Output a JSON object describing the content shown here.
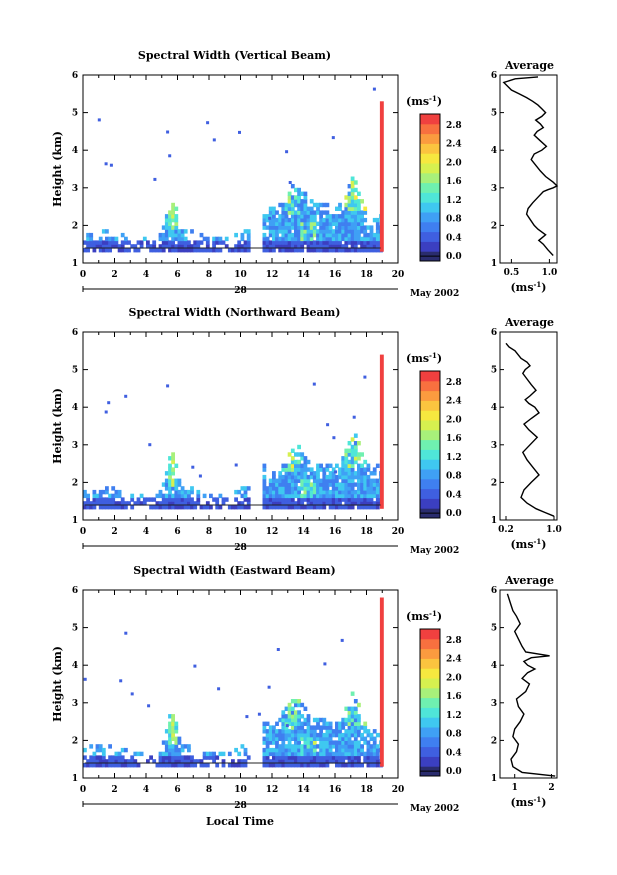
{
  "colorscale": {
    "colors": [
      "#2a2c6e",
      "#3b3fc1",
      "#3f5fe0",
      "#3f7ff0",
      "#3fa0f5",
      "#3fc8f0",
      "#4fe6d8",
      "#6ff0b0",
      "#a8f07a",
      "#d6f04f",
      "#f6e83f",
      "#fbc43f",
      "#fb9b3f",
      "#f8703f",
      "#f0403f"
    ],
    "ticks": [
      "0.0",
      "0.4",
      "0.8",
      "1.2",
      "1.6",
      "2.0",
      "2.4",
      "2.8"
    ],
    "unit": "(ms",
    "unit_sup": "-1",
    "unit_close": ")"
  },
  "time_axis": {
    "ticks": [
      "0",
      "2",
      "4",
      "6",
      "8",
      "10",
      "12",
      "14",
      "16",
      "18",
      "20"
    ],
    "day": "28",
    "month_year": "May 2002",
    "xlabel": "Local Time"
  },
  "height_axis": {
    "ticks": [
      "1",
      "2",
      "3",
      "4",
      "5",
      "6"
    ],
    "ylabel": "Height (km)"
  },
  "panels": [
    {
      "id": "vertical",
      "title": "Spectral Width (Vertical Beam)",
      "avg_title": "Average",
      "avg_ticks": [
        "0.5",
        "1.0"
      ],
      "avg_range": [
        0.35,
        1.1
      ],
      "avg_xlabel": "(ms",
      "avg_xlabel_sup": "-1",
      "avg_xlabel_close": ")"
    },
    {
      "id": "northward",
      "title": "Spectral Width (Northward Beam)",
      "avg_title": "Average",
      "avg_ticks": [
        "0.2",
        "1.0"
      ],
      "avg_range": [
        0.1,
        1.05
      ],
      "avg_xlabel": "(ms",
      "avg_xlabel_sup": "-1",
      "avg_xlabel_close": ")"
    },
    {
      "id": "eastward",
      "title": "Spectral Width (Eastward Beam)",
      "avg_title": "Average",
      "avg_ticks": [
        "1",
        "2"
      ],
      "avg_range": [
        0.6,
        2.15
      ],
      "avg_xlabel": "(ms",
      "avg_xlabel_sup": "-1",
      "avg_xlabel_close": ")"
    }
  ],
  "chart_data": [
    {
      "type": "heatmap",
      "title": "Spectral Width (Vertical Beam)",
      "xlabel": "",
      "ylabel": "Height (km)",
      "xlim": [
        0,
        20
      ],
      "ylim": [
        1,
        6
      ],
      "colorbar_range": [
        0.0,
        3.0
      ],
      "colorbar_label": "(ms-1)"
    },
    {
      "type": "line",
      "title": "Average",
      "xlabel": "(ms-1)",
      "ylabel": "",
      "xlim": [
        0.35,
        1.1
      ],
      "ylim": [
        1,
        6
      ],
      "x": [
        1.05,
        0.98,
        0.92,
        0.86,
        0.95,
        0.85,
        0.8,
        0.75,
        0.7,
        0.72,
        0.78,
        0.85,
        0.92,
        0.98,
        1.05,
        1.1,
        1.05,
        0.95,
        0.88,
        0.82,
        0.76,
        0.8,
        0.9,
        0.96,
        0.88,
        0.8,
        0.84,
        0.92,
        0.88,
        0.82,
        0.9,
        0.95,
        0.9,
        0.85,
        0.78,
        0.7,
        0.6,
        0.5,
        0.45,
        0.4,
        0.55,
        0.85
      ],
      "y": [
        1.2,
        1.35,
        1.5,
        1.6,
        1.75,
        1.9,
        2.0,
        2.15,
        2.3,
        2.45,
        2.6,
        2.75,
        2.9,
        2.95,
        3.0,
        3.05,
        3.15,
        3.3,
        3.45,
        3.6,
        3.75,
        3.9,
        4.0,
        4.1,
        4.25,
        4.4,
        4.5,
        4.6,
        4.7,
        4.8,
        4.9,
        5.0,
        5.1,
        5.2,
        5.3,
        5.4,
        5.5,
        5.6,
        5.7,
        5.8,
        5.9,
        5.95
      ]
    },
    {
      "type": "heatmap",
      "title": "Spectral Width (Northward Beam)",
      "xlabel": "",
      "ylabel": "Height (km)",
      "xlim": [
        0,
        20
      ],
      "ylim": [
        1,
        6
      ],
      "colorbar_range": [
        0.0,
        3.0
      ],
      "colorbar_label": "(ms-1)"
    },
    {
      "type": "line",
      "title": "Average",
      "xlabel": "(ms-1)",
      "ylabel": "",
      "xlim": [
        0.1,
        1.05
      ],
      "ylim": [
        1,
        6
      ],
      "x": [
        1.0,
        0.85,
        0.7,
        0.55,
        0.45,
        0.5,
        0.62,
        0.75,
        0.65,
        0.55,
        0.48,
        0.6,
        0.72,
        0.58,
        0.5,
        0.62,
        0.75,
        0.68,
        0.58,
        0.52,
        0.6,
        0.7,
        0.62,
        0.55,
        0.48,
        0.52,
        0.6,
        0.55,
        0.45,
        0.4,
        0.35,
        0.25,
        0.2
      ],
      "y": [
        1.1,
        1.2,
        1.3,
        1.45,
        1.6,
        1.8,
        2.0,
        2.2,
        2.4,
        2.6,
        2.8,
        3.0,
        3.2,
        3.4,
        3.55,
        3.7,
        3.85,
        4.0,
        4.1,
        4.2,
        4.3,
        4.45,
        4.6,
        4.75,
        4.9,
        5.0,
        5.1,
        5.2,
        5.3,
        5.4,
        5.5,
        5.6,
        5.7
      ]
    },
    {
      "type": "heatmap",
      "title": "Spectral Width (Eastward Beam)",
      "xlabel": "Local Time",
      "ylabel": "Height (km)",
      "xlim": [
        0,
        20
      ],
      "ylim": [
        1,
        6
      ],
      "colorbar_range": [
        0.0,
        3.0
      ],
      "colorbar_label": "(ms-1)"
    },
    {
      "type": "line",
      "title": "Average",
      "xlabel": "(ms-1)",
      "ylabel": "",
      "xlim": [
        0.6,
        2.15
      ],
      "ylim": [
        1,
        6
      ],
      "x": [
        2.1,
        1.2,
        0.95,
        0.9,
        1.05,
        1.1,
        0.95,
        1.0,
        1.15,
        1.25,
        1.1,
        1.05,
        1.3,
        1.4,
        1.2,
        1.35,
        1.55,
        1.35,
        1.25,
        1.45,
        1.95,
        1.3,
        1.2,
        1.1,
        1.0,
        1.15,
        1.05,
        0.95,
        0.9,
        0.85,
        0.8
      ],
      "y": [
        1.05,
        1.15,
        1.3,
        1.5,
        1.7,
        1.9,
        2.1,
        2.3,
        2.5,
        2.7,
        2.9,
        3.1,
        3.3,
        3.5,
        3.65,
        3.8,
        3.9,
        4.0,
        4.1,
        4.2,
        4.25,
        4.35,
        4.5,
        4.7,
        4.9,
        5.1,
        5.3,
        5.45,
        5.6,
        5.75,
        5.9
      ]
    }
  ]
}
